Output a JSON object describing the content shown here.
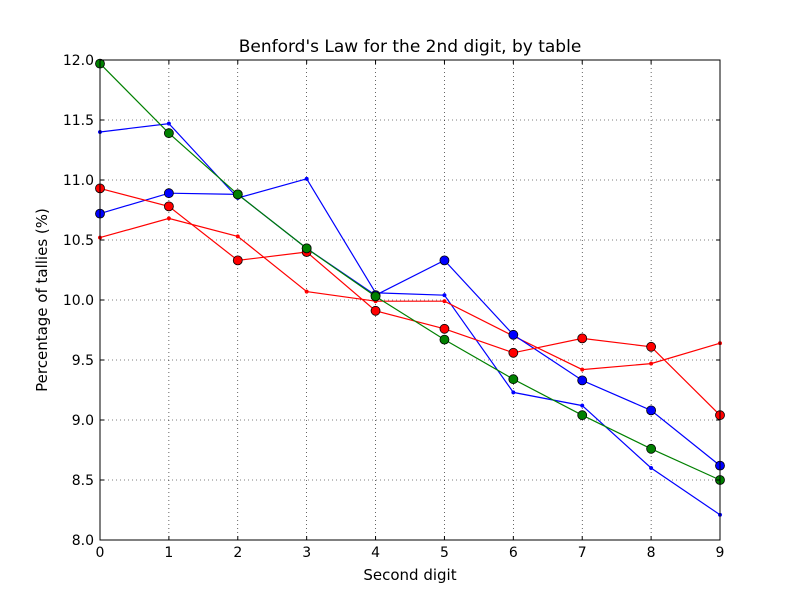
{
  "chart_data": {
    "type": "line",
    "title": "Benford's Law for the 2nd digit, by table",
    "xlabel": "Second digit",
    "ylabel": "Percentage of tallies (%)",
    "xlim": [
      0,
      9
    ],
    "ylim": [
      8.0,
      12.0
    ],
    "x_ticks": [
      "0",
      "1",
      "2",
      "3",
      "4",
      "5",
      "6",
      "7",
      "8",
      "9"
    ],
    "y_ticks": [
      "8.0",
      "8.5",
      "9.0",
      "9.5",
      "10.0",
      "10.5",
      "11.0",
      "11.5",
      "12.0"
    ],
    "grid": true,
    "x": [
      0,
      1,
      2,
      3,
      4,
      5,
      6,
      7,
      8,
      9
    ],
    "series": [
      {
        "color": "#0000ff",
        "marker": "small",
        "values": [
          11.4,
          11.47,
          10.85,
          11.01,
          10.06,
          10.04,
          9.23,
          9.12,
          8.6,
          8.21
        ]
      },
      {
        "color": "#ff0000",
        "marker": "small",
        "values": [
          10.52,
          10.68,
          10.53,
          10.07,
          9.99,
          9.99,
          9.7,
          9.42,
          9.47,
          9.64
        ]
      },
      {
        "color": "#0000ff",
        "marker": "circle",
        "values": [
          10.72,
          10.89,
          10.88,
          10.43,
          10.04,
          10.33,
          9.71,
          9.33,
          9.08,
          8.62
        ]
      },
      {
        "color": "#ff0000",
        "marker": "circle",
        "values": [
          10.93,
          10.78,
          10.33,
          10.4,
          9.91,
          9.76,
          9.56,
          9.68,
          9.61,
          9.04
        ]
      },
      {
        "color": "#008000",
        "marker": "circle",
        "values": [
          11.97,
          11.39,
          10.88,
          10.43,
          10.03,
          9.67,
          9.34,
          9.04,
          8.76,
          8.5
        ]
      }
    ]
  }
}
